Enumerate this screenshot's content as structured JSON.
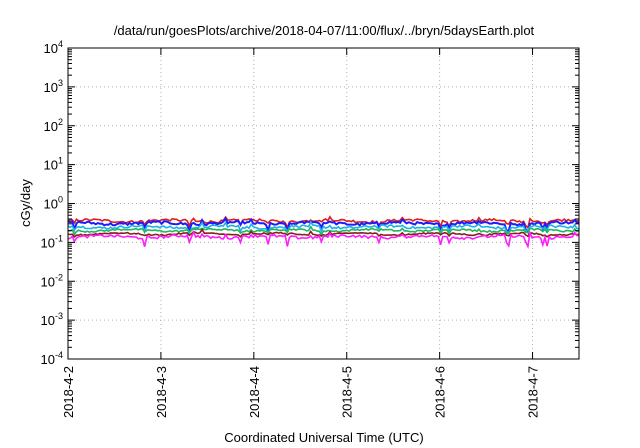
{
  "chart_data": {
    "type": "line",
    "title": "/data/run/goesPlots/archive/2018-04-07/11:00/flux/../bryn/5daysEarth.plot",
    "xlabel": "Coordinated Universal Time (UTC)",
    "ylabel": "cGy/day",
    "x_range": [
      "2018-4-2",
      "2018-4-7 12:00"
    ],
    "x_ticks": [
      "2018-4-2",
      "2018-4-3",
      "2018-4-4",
      "2018-4-5",
      "2018-4-6",
      "2018-4-7"
    ],
    "y_scale": "log",
    "ylim": [
      0.0001,
      10000
    ],
    "y_ticks": [
      {
        "value": 0.0001,
        "base": "10",
        "exp": "-4"
      },
      {
        "value": 0.001,
        "base": "10",
        "exp": "-3"
      },
      {
        "value": 0.01,
        "base": "10",
        "exp": "-2"
      },
      {
        "value": 0.1,
        "base": "10",
        "exp": "-1"
      },
      {
        "value": 1,
        "base": "10",
        "exp": "0"
      },
      {
        "value": 10,
        "base": "10",
        "exp": "1"
      },
      {
        "value": 100,
        "base": "10",
        "exp": "2"
      },
      {
        "value": 1000,
        "base": "10",
        "exp": "3"
      },
      {
        "value": 10000,
        "base": "10",
        "exp": "4"
      }
    ],
    "grid": true,
    "legend": "none",
    "series": [
      {
        "color": "#e01c1c",
        "level": 0.36,
        "spread": 0.07,
        "dips": 0.25
      },
      {
        "color": "#1c1cff",
        "level": 0.31,
        "spread": 0.08,
        "dips": 0.35
      },
      {
        "color": "#1fb0e8",
        "level": 0.25,
        "spread": 0.07,
        "dips": 0.3
      },
      {
        "color": "#1cb85a",
        "level": 0.205,
        "spread": 0.05,
        "dips": 0.2
      },
      {
        "color": "#8b1c1c",
        "level": 0.165,
        "spread": 0.04,
        "dips": 0.15
      },
      {
        "color": "#ff1cff",
        "level": 0.14,
        "spread": 0.08,
        "dips": 0.45
      }
    ]
  }
}
